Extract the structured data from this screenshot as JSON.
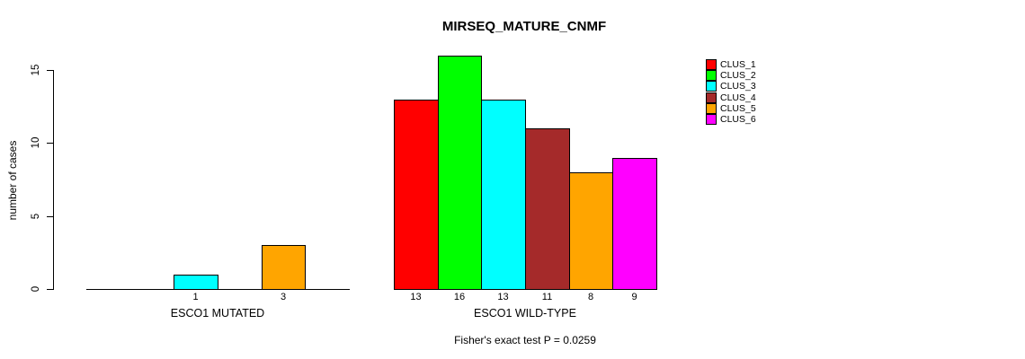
{
  "chart_data": {
    "type": "bar",
    "title": "MIRSEQ_MATURE_CNMF",
    "ylabel": "number of cases",
    "xlabel": "",
    "yticks": [
      0,
      5,
      10,
      15
    ],
    "ylim": [
      0,
      16
    ],
    "grid": false,
    "legend_position": "top-right",
    "bar_outline_color": "#000000",
    "axis_color": "#000000",
    "background_color": "#ffffff",
    "series": [
      {
        "name": "CLUS_1",
        "color": "#FF0000"
      },
      {
        "name": "CLUS_2",
        "color": "#00FF00"
      },
      {
        "name": "CLUS_3",
        "color": "#00FFFF"
      },
      {
        "name": "CLUS_4",
        "color": "#A52A2A"
      },
      {
        "name": "CLUS_5",
        "color": "#FFA500"
      },
      {
        "name": "CLUS_6",
        "color": "#FF00FF"
      }
    ],
    "groups": [
      {
        "label": "ESCO1 MUTATED",
        "values": [
          0,
          0,
          1,
          0,
          3,
          0
        ]
      },
      {
        "label": "ESCO1 WILD-TYPE",
        "values": [
          13,
          16,
          13,
          11,
          8,
          9
        ]
      }
    ],
    "bar_value_labels": {
      "shown_for": "nonzero values",
      "mutated": [
        1,
        3
      ],
      "wild_type": [
        13,
        16,
        13,
        11,
        8,
        9
      ]
    },
    "annotation": "Fisher's exact test P = 0.0259"
  }
}
